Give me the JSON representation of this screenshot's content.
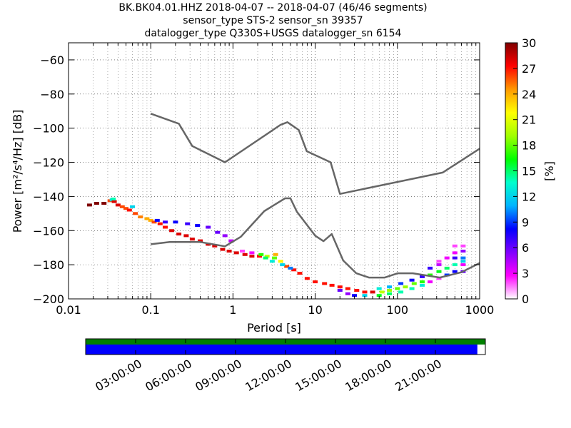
{
  "header": {
    "title_line_1": "BK.BK04.01.HHZ   2018-04-07 -- 2018-04-07  (46/46 segments)",
    "title_line_2": "sensor_type STS-2 sensor_sn 39357",
    "title_line_3": "datalogger_type Q330S+USGS datalogger_sn 6154"
  },
  "chart_data": {
    "type": "heatmap",
    "xlabel": "Period [s]",
    "ylabel": "Power [m²/s⁴/Hz] [dB]",
    "xscale": "log",
    "xlim": [
      0.01,
      1000
    ],
    "ylim": [
      -200,
      -50
    ],
    "xticks": [
      0.01,
      0.1,
      1,
      10,
      100,
      1000
    ],
    "xtick_labels": [
      "0.01",
      "0.1",
      "1",
      "10",
      "100",
      "1000"
    ],
    "yticks": [
      -60,
      -80,
      -100,
      -120,
      -140,
      -160,
      -180,
      -200
    ],
    "ytick_labels": [
      "−60",
      "−80",
      "−100",
      "−120",
      "−140",
      "−160",
      "−180",
      "−200"
    ],
    "grid": true,
    "colorbar": {
      "label": "[%]",
      "range": [
        0,
        30
      ],
      "ticks": [
        0,
        3,
        6,
        9,
        12,
        15,
        18,
        21,
        24,
        27,
        30
      ],
      "tick_labels": [
        "0",
        "3",
        "6",
        "9",
        "12",
        "15",
        "18",
        "21",
        "24",
        "27",
        "30"
      ]
    },
    "noise_models": [
      {
        "points": [
          [
            0.1,
            -91.5
          ],
          [
            0.22,
            -97.4
          ],
          [
            0.32,
            -110.5
          ],
          [
            0.8,
            -120.0
          ],
          [
            3.8,
            -98.0
          ],
          [
            4.6,
            -96.5
          ],
          [
            6.3,
            -101.0
          ],
          [
            7.9,
            -113.5
          ],
          [
            15.4,
            -120.0
          ],
          [
            20,
            -138.5
          ],
          [
            354.8,
            -126.0
          ],
          [
            1000,
            -112.0
          ]
        ]
      },
      {
        "points": [
          [
            0.1,
            -168.0
          ],
          [
            0.17,
            -166.7
          ],
          [
            0.4,
            -166.7
          ],
          [
            0.8,
            -169.2
          ],
          [
            1.24,
            -163.7
          ],
          [
            2.4,
            -148.6
          ],
          [
            4.3,
            -141.1
          ],
          [
            5.0,
            -141.1
          ],
          [
            6.0,
            -149.0
          ],
          [
            10.0,
            -163.0
          ],
          [
            12.6,
            -166.2
          ],
          [
            15.9,
            -162.0
          ],
          [
            21.9,
            -177.5
          ],
          [
            31.6,
            -185.0
          ],
          [
            45,
            -187.5
          ],
          [
            70,
            -187.5
          ],
          [
            101,
            -185.0
          ],
          [
            154,
            -185.0
          ],
          [
            328,
            -187.5
          ],
          [
            600,
            -184.4
          ],
          [
            1000,
            -179.0
          ]
        ]
      }
    ],
    "psd_distribution": [
      {
        "period": 0.018,
        "db": -145,
        "pct": 30
      },
      {
        "period": 0.022,
        "db": -144,
        "pct": 30
      },
      {
        "period": 0.027,
        "db": -144,
        "pct": 30
      },
      {
        "period": 0.032,
        "db": -142.5,
        "pct": 26
      },
      {
        "period": 0.034,
        "db": -142,
        "pct": 12
      },
      {
        "period": 0.036,
        "db": -143,
        "pct": 28
      },
      {
        "period": 0.04,
        "db": -145,
        "pct": 28
      },
      {
        "period": 0.045,
        "db": -146,
        "pct": 26
      },
      {
        "period": 0.05,
        "db": -147,
        "pct": 26
      },
      {
        "period": 0.055,
        "db": -148,
        "pct": 27
      },
      {
        "period": 0.065,
        "db": -150,
        "pct": 26
      },
      {
        "period": 0.075,
        "db": -152,
        "pct": 25
      },
      {
        "period": 0.09,
        "db": -153,
        "pct": 24
      },
      {
        "period": 0.1,
        "db": -154,
        "pct": 24
      },
      {
        "period": 0.11,
        "db": -155,
        "pct": 26
      },
      {
        "period": 0.13,
        "db": -156,
        "pct": 27
      },
      {
        "period": 0.15,
        "db": -158,
        "pct": 27
      },
      {
        "period": 0.18,
        "db": -160,
        "pct": 28
      },
      {
        "period": 0.22,
        "db": -162,
        "pct": 28
      },
      {
        "period": 0.27,
        "db": -163,
        "pct": 28
      },
      {
        "period": 0.32,
        "db": -165,
        "pct": 28
      },
      {
        "period": 0.4,
        "db": -166,
        "pct": 28
      },
      {
        "period": 0.5,
        "db": -168,
        "pct": 28
      },
      {
        "period": 0.6,
        "db": -169,
        "pct": 28
      },
      {
        "period": 0.75,
        "db": -171,
        "pct": 28
      },
      {
        "period": 0.9,
        "db": -172,
        "pct": 28
      },
      {
        "period": 1.1,
        "db": -173,
        "pct": 28
      },
      {
        "period": 1.4,
        "db": -174,
        "pct": 28
      },
      {
        "period": 1.7,
        "db": -175,
        "pct": 28
      },
      {
        "period": 2.1,
        "db": -175,
        "pct": 27
      },
      {
        "period": 2.6,
        "db": -175,
        "pct": 20
      },
      {
        "period": 3.2,
        "db": -176,
        "pct": 18
      },
      {
        "period": 3.8,
        "db": -178,
        "pct": 22
      },
      {
        "period": 4.5,
        "db": -181,
        "pct": 26
      },
      {
        "period": 5.5,
        "db": -183,
        "pct": 27
      },
      {
        "period": 6.5,
        "db": -185,
        "pct": 27
      },
      {
        "period": 8.0,
        "db": -188,
        "pct": 27
      },
      {
        "period": 10,
        "db": -190,
        "pct": 27
      },
      {
        "period": 13,
        "db": -191,
        "pct": 27
      },
      {
        "period": 16,
        "db": -192,
        "pct": 27
      },
      {
        "period": 20,
        "db": -193,
        "pct": 27
      },
      {
        "period": 25,
        "db": -194,
        "pct": 27
      },
      {
        "period": 32,
        "db": -195,
        "pct": 27
      },
      {
        "period": 40,
        "db": -196,
        "pct": 27
      },
      {
        "period": 50,
        "db": -196,
        "pct": 28
      },
      {
        "period": 65,
        "db": -196,
        "pct": 20
      },
      {
        "period": 80,
        "db": -195,
        "pct": 19
      },
      {
        "period": 100,
        "db": -194,
        "pct": 18
      },
      {
        "period": 125,
        "db": -193,
        "pct": 19
      },
      {
        "period": 160,
        "db": -191,
        "pct": 18
      },
      {
        "period": 200,
        "db": -190,
        "pct": 17
      },
      {
        "period": 250,
        "db": -186,
        "pct": 17
      },
      {
        "period": 320,
        "db": -184,
        "pct": 16
      },
      {
        "period": 400,
        "db": -182,
        "pct": 15
      },
      {
        "period": 500,
        "db": -180,
        "pct": 14
      },
      {
        "period": 630,
        "db": -178,
        "pct": 12
      },
      {
        "period": 0.12,
        "db": -154,
        "pct": 8
      },
      {
        "period": 0.15,
        "db": -155,
        "pct": 7
      },
      {
        "period": 0.2,
        "db": -155,
        "pct": 8
      },
      {
        "period": 0.28,
        "db": -156,
        "pct": 7
      },
      {
        "period": 0.37,
        "db": -157,
        "pct": 8
      },
      {
        "period": 0.5,
        "db": -158,
        "pct": 6
      },
      {
        "period": 0.65,
        "db": -161,
        "pct": 6
      },
      {
        "period": 0.8,
        "db": -163,
        "pct": 5
      },
      {
        "period": 0.95,
        "db": -166,
        "pct": 4
      },
      {
        "period": 0.06,
        "db": -146,
        "pct": 12
      },
      {
        "period": 0.035,
        "db": -141.5,
        "pct": 14
      },
      {
        "period": 2.2,
        "db": -174,
        "pct": 17
      },
      {
        "period": 2.5,
        "db": -176,
        "pct": 15
      },
      {
        "period": 3.0,
        "db": -178,
        "pct": 13
      },
      {
        "period": 3.3,
        "db": -174,
        "pct": 24
      },
      {
        "period": 4.0,
        "db": -180,
        "pct": 12
      },
      {
        "period": 5.0,
        "db": -182,
        "pct": 10
      },
      {
        "period": 1.7,
        "db": -173,
        "pct": 3
      },
      {
        "period": 1.3,
        "db": -172,
        "pct": 2
      },
      {
        "period": 30,
        "db": -198,
        "pct": 8
      },
      {
        "period": 40,
        "db": -198,
        "pct": 12
      },
      {
        "period": 60,
        "db": -198,
        "pct": 16
      },
      {
        "period": 60,
        "db": -194,
        "pct": 13
      },
      {
        "period": 80,
        "db": -197,
        "pct": 15
      },
      {
        "period": 80,
        "db": -193,
        "pct": 11
      },
      {
        "period": 110,
        "db": -196,
        "pct": 14
      },
      {
        "period": 110,
        "db": -191,
        "pct": 9
      },
      {
        "period": 150,
        "db": -194,
        "pct": 14
      },
      {
        "period": 150,
        "db": -189,
        "pct": 8
      },
      {
        "period": 200,
        "db": -192,
        "pct": 13
      },
      {
        "period": 200,
        "db": -187,
        "pct": 7
      },
      {
        "period": 20,
        "db": -195,
        "pct": 6
      },
      {
        "period": 25,
        "db": -197,
        "pct": 5
      },
      {
        "period": 250,
        "db": -190,
        "pct": 3
      },
      {
        "period": 250,
        "db": -182,
        "pct": 7
      },
      {
        "period": 320,
        "db": -188,
        "pct": 2
      },
      {
        "period": 320,
        "db": -180,
        "pct": 4
      },
      {
        "period": 320,
        "db": -178,
        "pct": 2
      },
      {
        "period": 400,
        "db": -186,
        "pct": 9
      },
      {
        "period": 400,
        "db": -176,
        "pct": 3
      },
      {
        "period": 500,
        "db": -184,
        "pct": 8
      },
      {
        "period": 500,
        "db": -176,
        "pct": 7
      },
      {
        "period": 500,
        "db": -173,
        "pct": 3
      },
      {
        "period": 500,
        "db": -169,
        "pct": 2
      },
      {
        "period": 630,
        "db": -184,
        "pct": 6
      },
      {
        "period": 630,
        "db": -180,
        "pct": 3
      },
      {
        "period": 630,
        "db": -176,
        "pct": 10
      },
      {
        "period": 630,
        "db": -172,
        "pct": 5
      },
      {
        "period": 630,
        "db": -169,
        "pct": 2
      }
    ],
    "timeline": {
      "coverage_fraction": 0.98,
      "tick_labels": [
        "03:00:00",
        "06:00:00",
        "09:00:00",
        "12:00:00",
        "15:00:00",
        "18:00:00",
        "21:00:00"
      ],
      "tick_fractions": [
        0.125,
        0.25,
        0.375,
        0.5,
        0.625,
        0.75,
        0.875
      ],
      "colors": {
        "data": "#0000ff",
        "segments": "#008000"
      }
    },
    "colors": {
      "noise_model": "#666666",
      "colormap": [
        "#ffffff",
        "#ff00ff",
        "#8000ff",
        "#0000ff",
        "#00b4ff",
        "#00ffcc",
        "#00ff00",
        "#a0ff00",
        "#ffff00",
        "#ff9900",
        "#ff0000",
        "#800000"
      ]
    }
  }
}
